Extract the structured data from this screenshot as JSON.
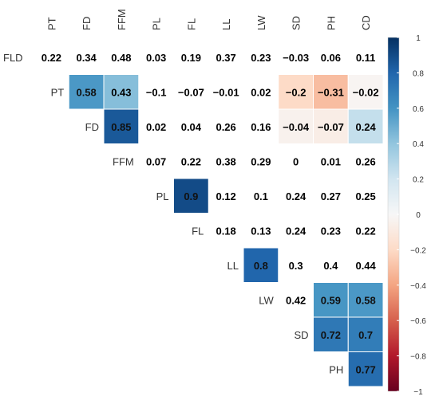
{
  "chart_data": {
    "type": "heatmap",
    "title": "",
    "col_labels": [
      "PT",
      "FD",
      "FFM",
      "PL",
      "FL",
      "LL",
      "LW",
      "SD",
      "PH",
      "CD"
    ],
    "rows": [
      {
        "label": "FLD",
        "start_col": 0,
        "values": [
          0.22,
          0.34,
          0.48,
          0.03,
          0.19,
          0.37,
          0.23,
          -0.03,
          0.06,
          0.11
        ]
      },
      {
        "label": "PT",
        "start_col": 1,
        "values": [
          0.58,
          0.43,
          -0.1,
          -0.07,
          -0.01,
          0.02,
          -0.2,
          -0.31,
          -0.02
        ]
      },
      {
        "label": "FD",
        "start_col": 2,
        "values": [
          0.85,
          0.02,
          0.04,
          0.26,
          0.16,
          -0.04,
          -0.07,
          0.24
        ]
      },
      {
        "label": "FFM",
        "start_col": 3,
        "values": [
          0.07,
          0.22,
          0.38,
          0.29,
          0,
          0.01,
          0.26
        ]
      },
      {
        "label": "PL",
        "start_col": 4,
        "values": [
          0.9,
          0.12,
          0.1,
          0.24,
          0.27,
          0.25
        ]
      },
      {
        "label": "FL",
        "start_col": 5,
        "values": [
          0.18,
          0.13,
          0.24,
          0.23,
          0.22
        ]
      },
      {
        "label": "LL",
        "start_col": 6,
        "values": [
          0.8,
          0.3,
          0.4,
          0.44
        ]
      },
      {
        "label": "LW",
        "start_col": 7,
        "values": [
          0.42,
          0.59,
          0.58
        ]
      },
      {
        "label": "SD",
        "start_col": 8,
        "values": [
          0.72,
          0.7
        ]
      },
      {
        "label": "PH",
        "start_col": 9,
        "values": [
          0.77
        ]
      }
    ],
    "significant_cells": [
      {
        "row": 1,
        "col": 1
      },
      {
        "row": 1,
        "col": 2
      },
      {
        "row": 1,
        "col": 7
      },
      {
        "row": 1,
        "col": 8
      },
      {
        "row": 1,
        "col": 9
      },
      {
        "row": 2,
        "col": 2
      },
      {
        "row": 2,
        "col": 7
      },
      {
        "row": 2,
        "col": 8
      },
      {
        "row": 2,
        "col": 9
      },
      {
        "row": 4,
        "col": 4
      },
      {
        "row": 6,
        "col": 6
      },
      {
        "row": 7,
        "col": 8
      },
      {
        "row": 7,
        "col": 9
      },
      {
        "row": 8,
        "col": 8
      },
      {
        "row": 8,
        "col": 9
      },
      {
        "row": 9,
        "col": 9
      }
    ],
    "colorbar": {
      "ticks": [
        1,
        0.8,
        0.6,
        0.4,
        0.2,
        0,
        -0.2,
        -0.4,
        -0.6,
        -0.8,
        -1
      ],
      "range": [
        -1,
        1
      ],
      "colors": {
        "neg": "#67001f",
        "mid": "#f7f7f7",
        "pos": "#053061"
      }
    }
  }
}
